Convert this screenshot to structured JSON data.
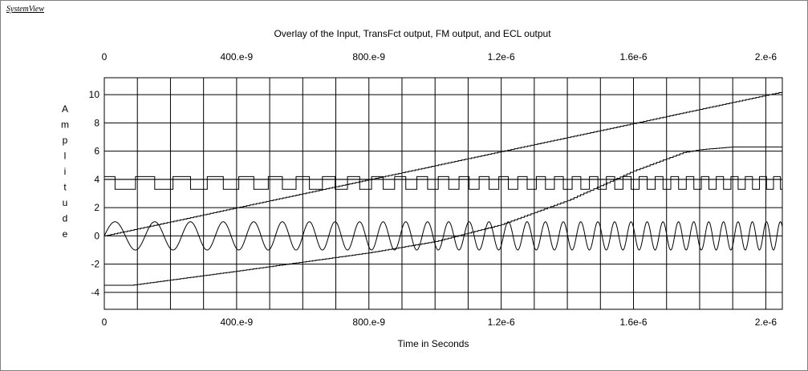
{
  "app": {
    "title": "SystemView"
  },
  "chart_data": {
    "type": "line",
    "title": "Overlay of the Input, TransFct output, FM output, and ECL output",
    "xlabel": "Time in Seconds",
    "ylabel": "Amplitude",
    "xlim": [
      0,
      2.05e-06
    ],
    "ylim": [
      -5.2,
      11.2
    ],
    "grid": true,
    "legend": "none",
    "x_tick_values": [
      0,
      4e-07,
      8e-07,
      1.2e-06,
      1.6e-06,
      2e-06
    ],
    "x_tick_labels": [
      "0",
      "400.e-9",
      "800.e-9",
      "1.2e-6",
      "1.6e-6",
      "2.e-6"
    ],
    "top_x_tick_labels": [
      "0",
      "400.e-9",
      "800.e-9",
      "1.2e-6",
      "1.6e-6",
      "2.e-6"
    ],
    "y_tick_values": [
      -4,
      -2,
      0,
      2,
      4,
      6,
      8,
      10
    ],
    "y_tick_labels": [
      "-4",
      "-2",
      "0",
      "2",
      "4",
      "6",
      "8",
      "10"
    ],
    "x_minor_gridlines": 20,
    "series": [
      {
        "kind": "staircase-ramp",
        "x": [
          0,
          2.05e-06
        ],
        "y": [
          0,
          10.2
        ],
        "step": 1e-08,
        "color": "#000000"
      },
      {
        "kind": "staircase-curve",
        "x": [
          0,
          8e-08,
          4e-07,
          8e-07,
          1e-06,
          1.2e-06,
          1.4e-06,
          1.6e-06,
          1.75e-06,
          1.8e-06,
          1.9e-06,
          2.05e-06
        ],
        "y": [
          -3.5,
          -3.5,
          -2.5,
          -1.2,
          -0.4,
          0.8,
          2.5,
          4.6,
          5.9,
          6.1,
          6.3,
          6.3
        ],
        "step": 1e-08,
        "color": "#000000"
      },
      {
        "kind": "fm-square",
        "high": 4.2,
        "low": 3.3,
        "f0": 7600000.0,
        "f1": 24000000.0,
        "t_end": 2.05e-06,
        "color": "#000000"
      },
      {
        "kind": "fm-sine",
        "amplitude": 1,
        "f0": 7600000.0,
        "f1": 24000000.0,
        "t_end": 2.05e-06,
        "color": "#000000"
      }
    ],
    "baseline": {
      "y": 4,
      "color": "#000000"
    }
  }
}
